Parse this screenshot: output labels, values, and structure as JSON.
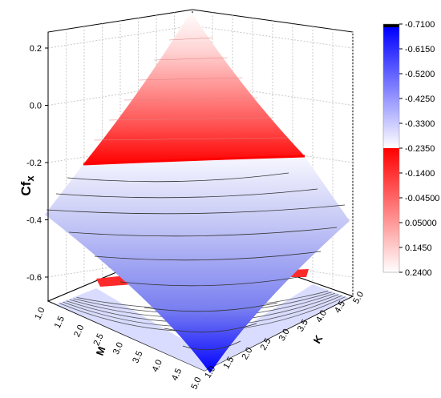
{
  "chart_data": {
    "type": "surface3d",
    "zlabel": "Cf",
    "zlabel_sub": "x",
    "xlabel": "M",
    "ylabel": "K",
    "x_ticks": [
      "1.0",
      "1.5",
      "2.0",
      "2.5",
      "3.0",
      "3.5",
      "4.0",
      "4.5",
      "5.0"
    ],
    "y_ticks": [
      "1.0",
      "1.5",
      "2.0",
      "2.5",
      "3.0",
      "3.5",
      "4.0",
      "4.5",
      "5.0"
    ],
    "z_ticks": [
      "0.2",
      "0.0",
      "-0.2",
      "-0.4",
      "-0.6"
    ],
    "zlim": [
      -0.71,
      0.24
    ],
    "xlim": [
      1.0,
      5.0
    ],
    "ylim": [
      1.0,
      5.0
    ],
    "surface_vertices": [
      {
        "M": 1.0,
        "K": 5.0,
        "Cf": 0.24
      },
      {
        "M": 1.0,
        "K": 1.0,
        "Cf": -0.38
      },
      {
        "M": 5.0,
        "K": 5.0,
        "Cf": -0.38
      },
      {
        "M": 5.0,
        "K": 1.0,
        "Cf": -0.71
      }
    ],
    "colorbar": {
      "labels": [
        "-0.7100",
        "-0.6150",
        "-0.5200",
        "-0.4250",
        "-0.3300",
        "-0.2350",
        "-0.1400",
        "-0.04500",
        "0.05000",
        "0.1450",
        "0.2400"
      ],
      "colors": {
        "min": "#0000ff",
        "mid": "#ffffff",
        "max": "#ff0000",
        "top_cap": "#000000"
      }
    },
    "grid": true
  }
}
